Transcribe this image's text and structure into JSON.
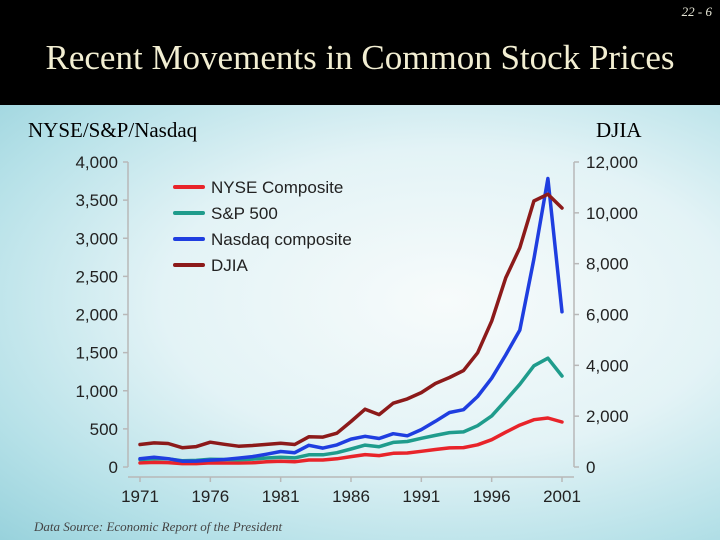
{
  "slide": {
    "number": "22 - 6",
    "title": "Recent Movements in Common Stock Prices",
    "footnote": "Data Source: Economic Report of the President"
  },
  "chart_data": {
    "type": "line",
    "left_axis_title": "NYSE/S&P/Nasdaq",
    "right_axis_title": "DJIA",
    "x": [
      1971,
      1972,
      1973,
      1974,
      1975,
      1976,
      1977,
      1978,
      1979,
      1980,
      1981,
      1982,
      1983,
      1984,
      1985,
      1986,
      1987,
      1988,
      1989,
      1990,
      1991,
      1992,
      1993,
      1994,
      1995,
      1996,
      1997,
      1998,
      1999,
      2000,
      2001
    ],
    "x_ticks": [
      "1971",
      "1976",
      "1981",
      "1986",
      "1991",
      "1996",
      "2001"
    ],
    "x_tick_values": [
      1971,
      1976,
      1981,
      1986,
      1991,
      1996,
      2001
    ],
    "xlim": [
      1971,
      2001
    ],
    "y_left_ticks": [
      "0",
      "500",
      "1,000",
      "1,500",
      "2,000",
      "2,500",
      "3,000",
      "3,500",
      "4,000"
    ],
    "y_left_tick_values": [
      0,
      500,
      1000,
      1500,
      2000,
      2500,
      3000,
      3500,
      4000
    ],
    "ylim_left": [
      0,
      4000
    ],
    "y_right_ticks": [
      "0",
      "2,000",
      "4,000",
      "6,000",
      "8,000",
      "10,000",
      "12,000"
    ],
    "y_right_tick_values": [
      0,
      2000,
      4000,
      6000,
      8000,
      10000,
      12000
    ],
    "ylim_right": [
      0,
      12000
    ],
    "grid": false,
    "legend_position": "top-left",
    "series": [
      {
        "name": "NYSE Composite",
        "axis": "left",
        "color": "#e8242a",
        "values": [
          54,
          60,
          58,
          45,
          45,
          54,
          53,
          53,
          55,
          68,
          75,
          68,
          92,
          92,
          108,
          136,
          162,
          150,
          180,
          183,
          206,
          229,
          250,
          255,
          291,
          358,
          457,
          550,
          620,
          643,
          590
        ]
      },
      {
        "name": "S&P 500",
        "axis": "left",
        "color": "#1f9c8c",
        "values": [
          98,
          109,
          107,
          82,
          86,
          102,
          98,
          96,
          103,
          118,
          128,
          120,
          160,
          160,
          187,
          236,
          287,
          266,
          323,
          334,
          376,
          415,
          451,
          460,
          542,
          670,
          873,
          1085,
          1327,
          1427,
          1194
        ]
      },
      {
        "name": "Nasdaq composite",
        "axis": "left",
        "color": "#1f3ee0",
        "values": [
          107,
          128,
          109,
          76,
          78,
          90,
          98,
          117,
          137,
          168,
          203,
          188,
          285,
          248,
          290,
          366,
          402,
          374,
          437,
          409,
          491,
          599,
          715,
          751,
          925,
          1164,
          1469,
          1795,
          2728,
          3784,
          2035
        ]
      },
      {
        "name": "DJIA",
        "axis": "right",
        "color": "#8c1a1a",
        "values": [
          885,
          950,
          923,
          759,
          802,
          975,
          894,
          820,
          844,
          891,
          932,
          884,
          1190,
          1178,
          1328,
          1792,
          2276,
          2061,
          2509,
          2679,
          2929,
          3284,
          3522,
          3794,
          4494,
          5742,
          7441,
          8625,
          10465,
          10735,
          10189
        ]
      }
    ]
  }
}
